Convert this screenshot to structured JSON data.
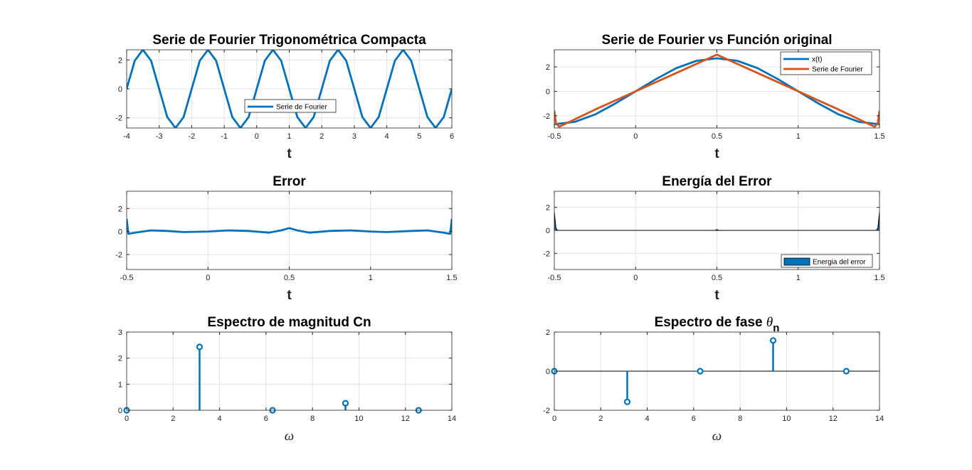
{
  "colors": {
    "blue": "#0072BD",
    "orange": "#D95319",
    "grid": "#E3E3E3",
    "axis": "#262626"
  },
  "chart_data": [
    {
      "id": "p1",
      "type": "line",
      "title": "Serie de Fourier Trigonométrica Compacta",
      "xlabel": "t",
      "xlim": [
        -4,
        6
      ],
      "ylim": [
        -2.7,
        2.7
      ],
      "xticks": [
        -4,
        -3,
        -2,
        -1,
        0,
        1,
        2,
        3,
        4,
        5,
        6
      ],
      "yticks": [
        -2,
        0,
        2
      ],
      "grid": true,
      "legend": {
        "position": "center",
        "entries": [
          "Serie de Fourier"
        ]
      },
      "series": [
        {
          "name": "Serie de Fourier",
          "color": "#0072BD",
          "x": [
            -4,
            -3.75,
            -3.5,
            -3.25,
            -3,
            -2.75,
            -2.5,
            -2.25,
            -2,
            -1.75,
            -1.5,
            -1.25,
            -1,
            -0.75,
            -0.5,
            -0.25,
            0,
            0.25,
            0.5,
            0.75,
            1,
            1.25,
            1.5,
            1.75,
            2,
            2.25,
            2.5,
            2.75,
            3,
            3.25,
            3.5,
            3.75,
            4,
            4.25,
            4.5,
            4.75,
            5,
            5.25,
            5.5,
            5.75,
            6
          ],
          "y": [
            0,
            1.95,
            2.7,
            1.95,
            0,
            -1.95,
            -2.7,
            -1.95,
            0,
            1.95,
            2.7,
            1.95,
            0,
            -1.95,
            -2.7,
            -1.95,
            0,
            1.95,
            2.7,
            1.95,
            0,
            -1.95,
            -2.7,
            -1.95,
            0,
            1.95,
            2.7,
            1.95,
            0,
            -1.95,
            -2.7,
            -1.95,
            0,
            1.95,
            2.7,
            1.95,
            0,
            -1.95,
            -2.7,
            -1.95,
            0
          ]
        }
      ]
    },
    {
      "id": "p2",
      "type": "line",
      "title": "Serie de Fourier vs Función original",
      "xlabel": "t",
      "xlim": [
        -0.5,
        1.5
      ],
      "ylim": [
        -3.0,
        3.4
      ],
      "xticks": [
        -0.5,
        0,
        0.5,
        1,
        1.5
      ],
      "yticks": [
        -2,
        0,
        2
      ],
      "grid": true,
      "legend": {
        "position": "top-right",
        "entries": [
          "x(t)",
          "Serie de Fourier"
        ]
      },
      "series": [
        {
          "name": "x(t)",
          "color": "#0072BD",
          "x": [
            -0.5,
            -0.375,
            -0.25,
            -0.125,
            0,
            0.125,
            0.25,
            0.375,
            0.5,
            0.625,
            0.75,
            0.875,
            1,
            1.125,
            1.25,
            1.375,
            1.5
          ],
          "y": [
            -2.7,
            -2.5,
            -1.9,
            -1.0,
            0,
            1.0,
            1.9,
            2.5,
            2.7,
            2.5,
            1.9,
            1.0,
            0,
            -1.0,
            -1.9,
            -2.5,
            -2.7
          ]
        },
        {
          "name": "Serie de Fourier",
          "color": "#D95319",
          "x": [
            -0.5,
            -0.49,
            -0.47,
            -0.25,
            0,
            0.25,
            0.5,
            0.75,
            1,
            1.25,
            1.47,
            1.49,
            1.5
          ],
          "y": [
            -1.6,
            -2.6,
            -2.9,
            -1.5,
            0,
            1.5,
            3.0,
            1.5,
            0,
            -1.5,
            -2.9,
            -2.6,
            -1.6
          ]
        }
      ]
    },
    {
      "id": "p3",
      "type": "line",
      "title": "Error",
      "xlabel": "t",
      "xlim": [
        -0.5,
        1.5
      ],
      "ylim": [
        -3.3,
        3.5
      ],
      "xticks": [
        -0.5,
        0,
        0.5,
        1,
        1.5
      ],
      "yticks": [
        -2,
        0,
        2
      ],
      "grid": true,
      "series": [
        {
          "name": "",
          "color": "#0072BD",
          "x": [
            -0.5,
            -0.49,
            -0.45,
            -0.35,
            -0.25,
            -0.15,
            0,
            0.125,
            0.25,
            0.375,
            0.45,
            0.5,
            0.55,
            0.625,
            0.75,
            0.875,
            1,
            1.1,
            1.25,
            1.35,
            1.45,
            1.49,
            1.5
          ],
          "y": [
            1.1,
            -0.2,
            -0.1,
            0.1,
            0.05,
            -0.05,
            0,
            0.1,
            0.05,
            -0.1,
            0.1,
            0.3,
            0.1,
            -0.1,
            0.05,
            0.1,
            0,
            -0.05,
            0.05,
            0.1,
            -0.1,
            -0.2,
            1.1
          ]
        }
      ]
    },
    {
      "id": "p4",
      "type": "area",
      "title": "Energía del Error",
      "xlabel": "t",
      "xlim": [
        -0.5,
        1.5
      ],
      "ylim": [
        -3.4,
        3.4
      ],
      "xticks": [
        -0.5,
        0,
        0.5,
        1,
        1.5
      ],
      "yticks": [
        -2,
        0,
        2
      ],
      "grid": true,
      "legend": {
        "position": "bottom-right",
        "entries": [
          "Energia del error"
        ]
      },
      "series": [
        {
          "name": "Energia del error",
          "color": "#0072BD",
          "x": [
            -0.5,
            -0.49,
            -0.48,
            0.49,
            0.5,
            0.51,
            1.48,
            1.49,
            1.5
          ],
          "y": [
            1.6,
            0.2,
            0,
            0,
            0.08,
            0,
            0,
            0.2,
            1.6
          ]
        }
      ]
    },
    {
      "id": "p5",
      "type": "stem",
      "title": "Espectro de magnitud Cn",
      "xlabel": "ω",
      "xlim": [
        0,
        14
      ],
      "ylim": [
        0,
        3
      ],
      "xticks": [
        0,
        2,
        4,
        6,
        8,
        10,
        12,
        14
      ],
      "yticks": [
        0,
        1,
        2,
        3
      ],
      "grid": true,
      "series": [
        {
          "name": "",
          "color": "#0072BD",
          "x": [
            0,
            3.14,
            6.28,
            9.42,
            12.57
          ],
          "y": [
            0,
            2.43,
            0,
            0.27,
            0
          ]
        }
      ]
    },
    {
      "id": "p6",
      "type": "stem",
      "title": "Espectro de fase θ",
      "title_sub": "n",
      "xlabel": "ω",
      "xlim": [
        0,
        14
      ],
      "ylim": [
        -2,
        2
      ],
      "xticks": [
        0,
        2,
        4,
        6,
        8,
        10,
        12,
        14
      ],
      "yticks": [
        -2,
        0,
        2
      ],
      "grid": true,
      "series": [
        {
          "name": "",
          "color": "#0072BD",
          "x": [
            0,
            3.14,
            6.28,
            9.42,
            12.57
          ],
          "y": [
            0,
            -1.57,
            0,
            1.57,
            0
          ]
        }
      ]
    }
  ]
}
